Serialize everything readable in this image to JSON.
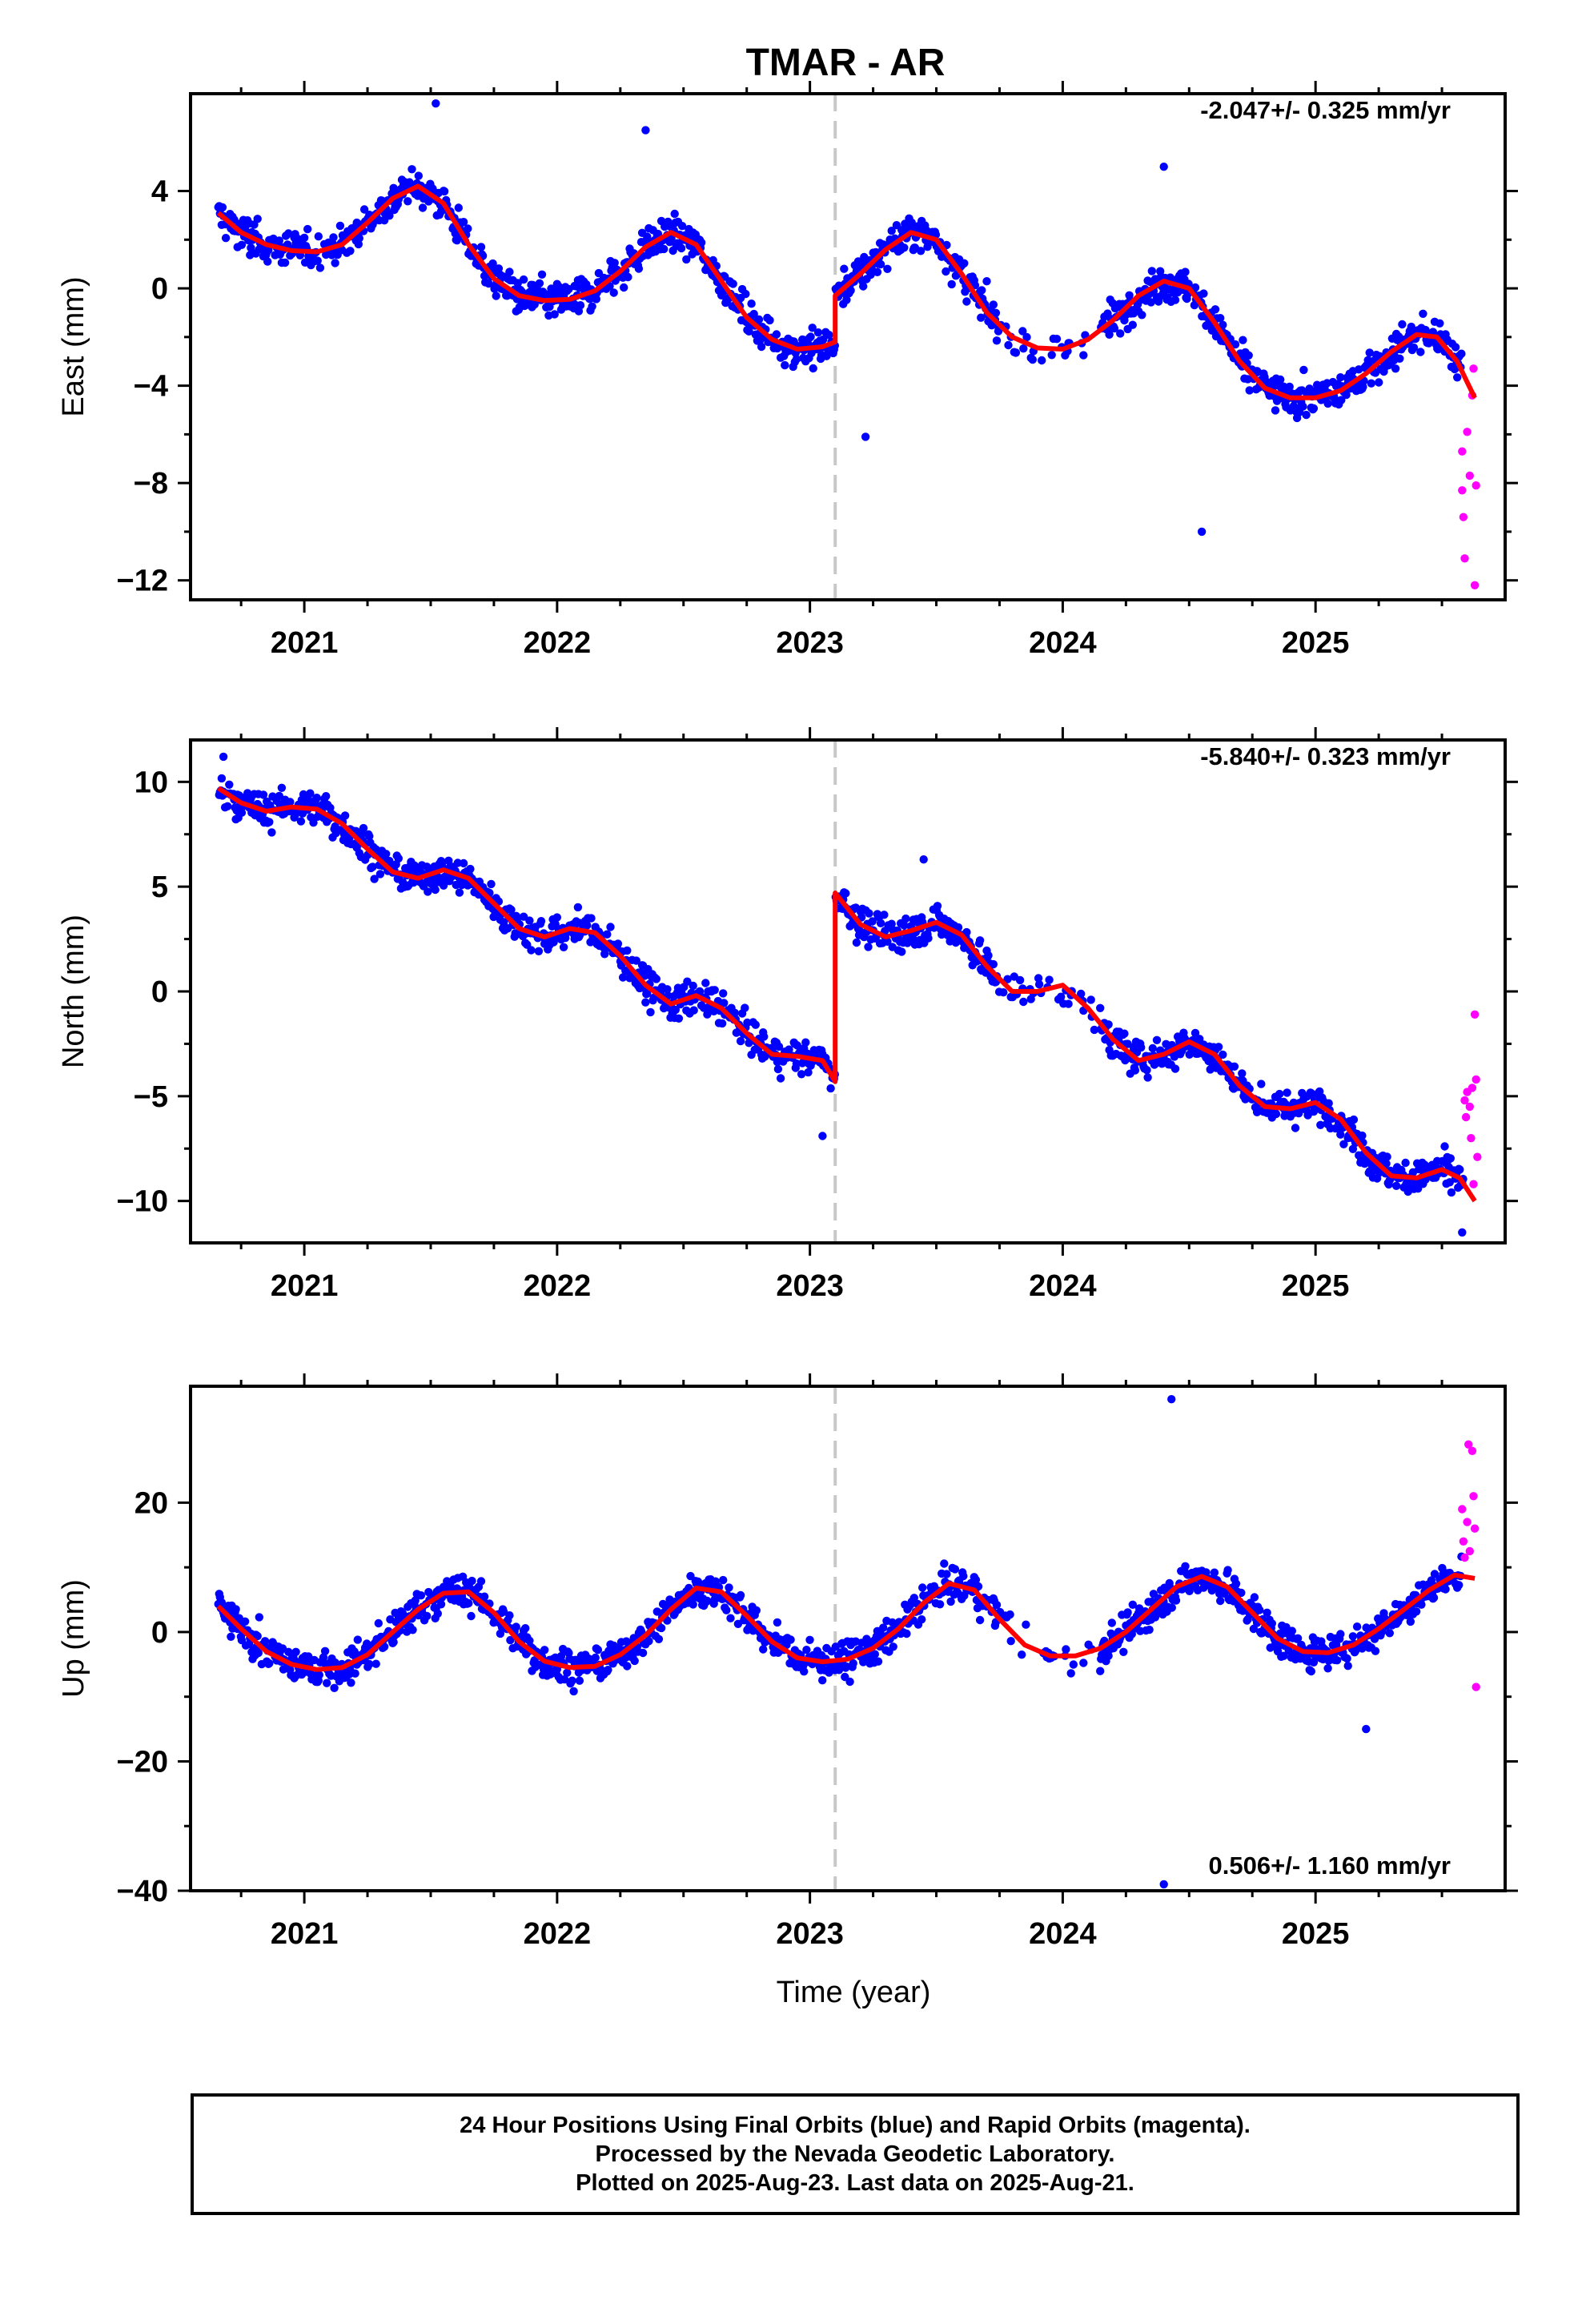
{
  "title": "TMAR - AR",
  "xlabel": "Time (year)",
  "colors": {
    "final": "#0000ff",
    "rapid": "#ff00ff",
    "fit": "#ff0000",
    "break": "#c8c8c8"
  },
  "footer": {
    "line1": "24 Hour Positions Using Final Orbits (blue) and Rapid Orbits (magenta).",
    "line2": "Processed by the Nevada Geodetic Laboratory.",
    "line3": "Plotted on 2025-Aug-23. Last data on 2025-Aug-21."
  },
  "chart_data": [
    {
      "type": "scatter",
      "ylabel": "East (mm)",
      "velocity": "-2.047+/- 0.325 mm/yr",
      "xlim": [
        2020.55,
        2025.75
      ],
      "ylim": [
        -12.8,
        8.0
      ],
      "xticks": [
        2021,
        2022,
        2023,
        2024,
        2025
      ],
      "yticks": [
        4,
        0,
        -4,
        -8,
        -12
      ],
      "yticklabels": [
        "4",
        "0",
        "−4",
        "−8",
        "−12"
      ],
      "break_epoch": 2023.1,
      "fit_curve": [
        [
          2020.66,
          3.1
        ],
        [
          2020.75,
          2.3
        ],
        [
          2020.85,
          1.8
        ],
        [
          2020.95,
          1.55
        ],
        [
          2021.05,
          1.5
        ],
        [
          2021.15,
          1.8
        ],
        [
          2021.25,
          2.7
        ],
        [
          2021.35,
          3.7
        ],
        [
          2021.45,
          4.2
        ],
        [
          2021.55,
          3.5
        ],
        [
          2021.65,
          1.8
        ],
        [
          2021.75,
          0.4
        ],
        [
          2021.85,
          -0.3
        ],
        [
          2021.95,
          -0.5
        ],
        [
          2022.05,
          -0.45
        ],
        [
          2022.15,
          -0.1
        ],
        [
          2022.25,
          0.7
        ],
        [
          2022.35,
          1.7
        ],
        [
          2022.45,
          2.3
        ],
        [
          2022.55,
          1.8
        ],
        [
          2022.65,
          0.3
        ],
        [
          2022.75,
          -1.2
        ],
        [
          2022.85,
          -2.1
        ],
        [
          2022.95,
          -2.5
        ],
        [
          2023.05,
          -2.4
        ],
        [
          2023.1,
          -2.2
        ],
        [
          2023.1,
          -0.3
        ],
        [
          2023.2,
          0.6
        ],
        [
          2023.3,
          1.6
        ],
        [
          2023.4,
          2.3
        ],
        [
          2023.5,
          2.0
        ],
        [
          2023.6,
          0.6
        ],
        [
          2023.7,
          -1.0
        ],
        [
          2023.8,
          -2.0
        ],
        [
          2023.9,
          -2.45
        ],
        [
          2024.0,
          -2.5
        ],
        [
          2024.1,
          -2.1
        ],
        [
          2024.2,
          -1.3
        ],
        [
          2024.3,
          -0.3
        ],
        [
          2024.4,
          0.3
        ],
        [
          2024.5,
          0.0
        ],
        [
          2024.6,
          -1.4
        ],
        [
          2024.7,
          -3.0
        ],
        [
          2024.8,
          -4.1
        ],
        [
          2024.9,
          -4.5
        ],
        [
          2025.0,
          -4.5
        ],
        [
          2025.1,
          -4.2
        ],
        [
          2025.2,
          -3.5
        ],
        [
          2025.3,
          -2.6
        ],
        [
          2025.4,
          -1.9
        ],
        [
          2025.48,
          -2.0
        ],
        [
          2025.56,
          -3.0
        ],
        [
          2025.63,
          -4.5
        ]
      ],
      "outliers": [
        [
          2021.52,
          7.6
        ],
        [
          2022.35,
          6.5
        ],
        [
          2023.22,
          -6.1
        ],
        [
          2024.55,
          -10.0
        ],
        [
          2024.4,
          5.0
        ]
      ],
      "rapid_points": [
        [
          2025.58,
          -6.7
        ],
        [
          2025.58,
          -8.3
        ],
        [
          2025.585,
          -9.4
        ],
        [
          2025.59,
          -11.1
        ],
        [
          2025.6,
          -5.9
        ],
        [
          2025.61,
          -7.7
        ],
        [
          2025.62,
          -4.4
        ],
        [
          2025.625,
          -3.3
        ],
        [
          2025.63,
          -12.2
        ],
        [
          2025.635,
          -8.1
        ]
      ]
    },
    {
      "type": "scatter",
      "ylabel": "North (mm)",
      "velocity": "-5.840+/- 0.323 mm/yr",
      "xlim": [
        2020.55,
        2025.75
      ],
      "ylim": [
        -12.0,
        12.0
      ],
      "xticks": [
        2021,
        2022,
        2023,
        2024,
        2025
      ],
      "yticks": [
        10,
        5,
        0,
        -5,
        -10
      ],
      "yticklabels": [
        "10",
        "5",
        "0",
        "−5",
        "−10"
      ],
      "break_epoch": 2023.1,
      "fit_curve": [
        [
          2020.66,
          9.7
        ],
        [
          2020.75,
          9.0
        ],
        [
          2020.85,
          8.6
        ],
        [
          2020.95,
          8.8
        ],
        [
          2021.05,
          8.7
        ],
        [
          2021.15,
          8.0
        ],
        [
          2021.25,
          6.8
        ],
        [
          2021.35,
          5.7
        ],
        [
          2021.45,
          5.4
        ],
        [
          2021.55,
          5.8
        ],
        [
          2021.65,
          5.4
        ],
        [
          2021.75,
          4.2
        ],
        [
          2021.85,
          3.0
        ],
        [
          2021.95,
          2.6
        ],
        [
          2022.05,
          3.0
        ],
        [
          2022.15,
          2.8
        ],
        [
          2022.25,
          1.7
        ],
        [
          2022.35,
          0.3
        ],
        [
          2022.45,
          -0.6
        ],
        [
          2022.55,
          -0.2
        ],
        [
          2022.65,
          -0.8
        ],
        [
          2022.75,
          -2.0
        ],
        [
          2022.85,
          -3.0
        ],
        [
          2022.95,
          -3.1
        ],
        [
          2023.05,
          -3.3
        ],
        [
          2023.1,
          -4.3
        ],
        [
          2023.1,
          4.7
        ],
        [
          2023.2,
          3.2
        ],
        [
          2023.3,
          2.6
        ],
        [
          2023.4,
          2.9
        ],
        [
          2023.5,
          3.3
        ],
        [
          2023.6,
          2.7
        ],
        [
          2023.7,
          1.2
        ],
        [
          2023.8,
          0.0
        ],
        [
          2023.9,
          0.0
        ],
        [
          2024.0,
          0.3
        ],
        [
          2024.1,
          -0.8
        ],
        [
          2024.2,
          -2.3
        ],
        [
          2024.3,
          -3.3
        ],
        [
          2024.4,
          -3.0
        ],
        [
          2024.5,
          -2.4
        ],
        [
          2024.6,
          -3.0
        ],
        [
          2024.7,
          -4.5
        ],
        [
          2024.8,
          -5.5
        ],
        [
          2024.9,
          -5.6
        ],
        [
          2025.0,
          -5.3
        ],
        [
          2025.1,
          -6.1
        ],
        [
          2025.2,
          -7.7
        ],
        [
          2025.3,
          -8.8
        ],
        [
          2025.4,
          -8.9
        ],
        [
          2025.5,
          -8.5
        ],
        [
          2025.57,
          -8.9
        ],
        [
          2025.63,
          -10.0
        ]
      ],
      "outliers": [
        [
          2020.68,
          11.2
        ],
        [
          2023.05,
          -6.9
        ],
        [
          2023.45,
          6.3
        ],
        [
          2025.58,
          -11.5
        ]
      ],
      "rapid_points": [
        [
          2025.59,
          -5.2
        ],
        [
          2025.595,
          -6.0
        ],
        [
          2025.6,
          -4.8
        ],
        [
          2025.61,
          -5.5
        ],
        [
          2025.615,
          -7.0
        ],
        [
          2025.62,
          -4.6
        ],
        [
          2025.625,
          -9.2
        ],
        [
          2025.63,
          -1.1
        ],
        [
          2025.635,
          -4.2
        ],
        [
          2025.64,
          -7.9
        ]
      ]
    },
    {
      "type": "scatter",
      "ylabel": "Up (mm)",
      "velocity": "0.506+/- 1.160 mm/yr",
      "xlim": [
        2020.55,
        2025.75
      ],
      "ylim": [
        -40.0,
        38.0
      ],
      "xticks": [
        2021,
        2022,
        2023,
        2024,
        2025
      ],
      "yticks": [
        20,
        0,
        -20,
        -40
      ],
      "yticklabels": [
        "20",
        "0",
        "−20",
        "−40"
      ],
      "break_epoch": 2023.1,
      "fit_curve": [
        [
          2020.66,
          4.0
        ],
        [
          2020.75,
          0.5
        ],
        [
          2020.85,
          -3.0
        ],
        [
          2020.95,
          -5.0
        ],
        [
          2021.05,
          -5.8
        ],
        [
          2021.15,
          -5.5
        ],
        [
          2021.25,
          -3.5
        ],
        [
          2021.35,
          0.0
        ],
        [
          2021.45,
          3.5
        ],
        [
          2021.55,
          6.0
        ],
        [
          2021.65,
          6.2
        ],
        [
          2021.75,
          3.0
        ],
        [
          2021.85,
          -1.5
        ],
        [
          2021.95,
          -4.5
        ],
        [
          2022.05,
          -5.5
        ],
        [
          2022.15,
          -5.3
        ],
        [
          2022.25,
          -3.5
        ],
        [
          2022.35,
          -0.5
        ],
        [
          2022.45,
          3.5
        ],
        [
          2022.55,
          6.8
        ],
        [
          2022.65,
          6.2
        ],
        [
          2022.75,
          2.5
        ],
        [
          2022.85,
          -1.5
        ],
        [
          2022.95,
          -4.0
        ],
        [
          2023.05,
          -4.6
        ],
        [
          2023.15,
          -4.2
        ],
        [
          2023.25,
          -2.5
        ],
        [
          2023.35,
          0.5
        ],
        [
          2023.45,
          4.5
        ],
        [
          2023.55,
          7.5
        ],
        [
          2023.65,
          6.5
        ],
        [
          2023.75,
          2.0
        ],
        [
          2023.85,
          -2.0
        ],
        [
          2023.95,
          -3.7
        ],
        [
          2024.05,
          -3.7
        ],
        [
          2024.15,
          -2.5
        ],
        [
          2024.25,
          0.0
        ],
        [
          2024.35,
          3.5
        ],
        [
          2024.45,
          7.0
        ],
        [
          2024.55,
          8.6
        ],
        [
          2024.65,
          7.0
        ],
        [
          2024.75,
          3.0
        ],
        [
          2024.85,
          -1.0
        ],
        [
          2024.95,
          -3.0
        ],
        [
          2025.05,
          -3.2
        ],
        [
          2025.15,
          -2.0
        ],
        [
          2025.25,
          0.5
        ],
        [
          2025.35,
          3.5
        ],
        [
          2025.45,
          6.5
        ],
        [
          2025.55,
          8.8
        ],
        [
          2025.63,
          8.3
        ]
      ],
      "outliers": [
        [
          2024.43,
          36.0
        ],
        [
          2024.4,
          -39.0
        ],
        [
          2025.2,
          -15.0
        ]
      ],
      "rapid_points": [
        [
          2025.58,
          19.0
        ],
        [
          2025.585,
          14.0
        ],
        [
          2025.59,
          11.5
        ],
        [
          2025.6,
          17.0
        ],
        [
          2025.605,
          29.0
        ],
        [
          2025.61,
          12.5
        ],
        [
          2025.62,
          28.0
        ],
        [
          2025.625,
          21.0
        ],
        [
          2025.63,
          16.0
        ],
        [
          2025.635,
          -8.5
        ]
      ]
    }
  ]
}
